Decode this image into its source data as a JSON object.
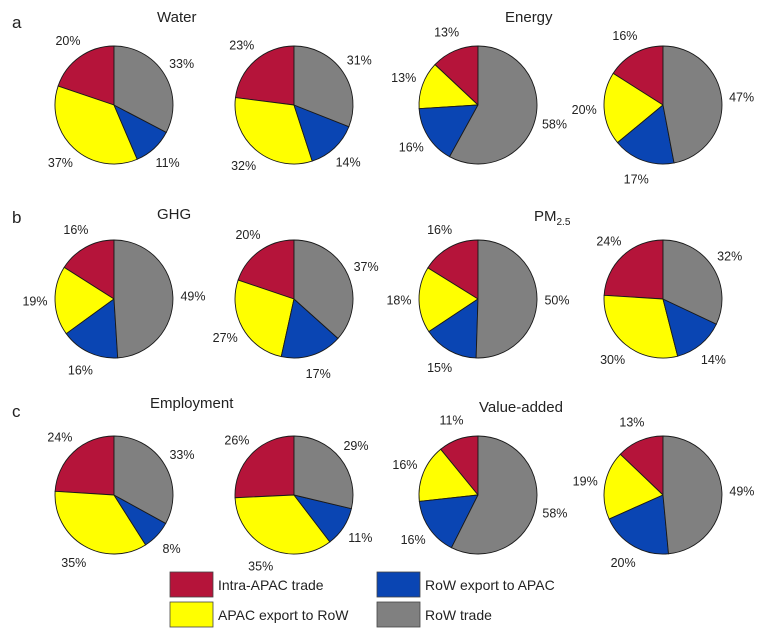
{
  "panels": [
    {
      "letter": "a",
      "titles": [
        "Water",
        "Energy"
      ]
    },
    {
      "letter": "b",
      "titles": [
        "GHG",
        "PM"
      ],
      "pm_sub": "2.5"
    },
    {
      "letter": "c",
      "titles": [
        "Employment",
        "Value-added"
      ]
    }
  ],
  "colors": {
    "intra_apac": "#b5143a",
    "row_export_to_apac": "#0a45b3",
    "apac_export_to_row": "#ffff00",
    "row_trade": "#808080"
  },
  "legend": [
    {
      "label": "Intra-APAC trade",
      "color": "#b5143a"
    },
    {
      "label": "RoW export to APAC",
      "color": "#0a45b3"
    },
    {
      "label": "APAC export to RoW",
      "color": "#ffff00"
    },
    {
      "label": "RoW trade",
      "color": "#808080"
    }
  ],
  "chart_data": [
    {
      "type": "pie",
      "panel": "a",
      "group": "Water",
      "slices": [
        {
          "label": "Intra-APAC trade",
          "value": 20,
          "text": "20%"
        },
        {
          "label": "APAC export to RoW",
          "value": 37,
          "text": "37%"
        },
        {
          "label": "RoW export to APAC",
          "value": 11,
          "text": "11%"
        },
        {
          "label": "RoW trade",
          "value": 33,
          "text": "33%"
        }
      ]
    },
    {
      "type": "pie",
      "panel": "a",
      "group": "Water",
      "slices": [
        {
          "label": "Intra-APAC trade",
          "value": 23,
          "text": "23%"
        },
        {
          "label": "APAC export to RoW",
          "value": 32,
          "text": "32%"
        },
        {
          "label": "RoW export to APAC",
          "value": 14,
          "text": "14%"
        },
        {
          "label": "RoW trade",
          "value": 31,
          "text": "31%"
        }
      ]
    },
    {
      "type": "pie",
      "panel": "a",
      "group": "Energy",
      "slices": [
        {
          "label": "Intra-APAC trade",
          "value": 13,
          "text": "13%"
        },
        {
          "label": "APAC export to RoW",
          "value": 13,
          "text": "13%"
        },
        {
          "label": "RoW export to APAC",
          "value": 16,
          "text": "16%"
        },
        {
          "label": "RoW trade",
          "value": 58,
          "text": "58%"
        }
      ]
    },
    {
      "type": "pie",
      "panel": "a",
      "group": "Energy",
      "slices": [
        {
          "label": "Intra-APAC trade",
          "value": 16,
          "text": "16%"
        },
        {
          "label": "APAC export to RoW",
          "value": 20,
          "text": "20%"
        },
        {
          "label": "RoW export to APAC",
          "value": 17,
          "text": "17%"
        },
        {
          "label": "RoW trade",
          "value": 47,
          "text": "47%"
        }
      ]
    },
    {
      "type": "pie",
      "panel": "b",
      "group": "GHG",
      "slices": [
        {
          "label": "Intra-APAC trade",
          "value": 16,
          "text": "16%"
        },
        {
          "label": "APAC export to RoW",
          "value": 19,
          "text": "19%"
        },
        {
          "label": "RoW export to APAC",
          "value": 16,
          "text": "16%"
        },
        {
          "label": "RoW trade",
          "value": 49,
          "text": "49%"
        }
      ]
    },
    {
      "type": "pie",
      "panel": "b",
      "group": "GHG",
      "slices": [
        {
          "label": "Intra-APAC trade",
          "value": 20,
          "text": "20%"
        },
        {
          "label": "APAC export to RoW",
          "value": 27,
          "text": "27%"
        },
        {
          "label": "RoW export to APAC",
          "value": 17,
          "text": "17%"
        },
        {
          "label": "RoW trade",
          "value": 37,
          "text": "37%"
        }
      ]
    },
    {
      "type": "pie",
      "panel": "b",
      "group": "PM2.5",
      "slices": [
        {
          "label": "Intra-APAC trade",
          "value": 16,
          "text": "16%"
        },
        {
          "label": "APAC export to RoW",
          "value": 18,
          "text": "18%"
        },
        {
          "label": "RoW export to APAC",
          "value": 15,
          "text": "15%"
        },
        {
          "label": "RoW trade",
          "value": 50,
          "text": "50%"
        }
      ]
    },
    {
      "type": "pie",
      "panel": "b",
      "group": "PM2.5",
      "slices": [
        {
          "label": "Intra-APAC trade",
          "value": 24,
          "text": "24%"
        },
        {
          "label": "APAC export to RoW",
          "value": 30,
          "text": "30%"
        },
        {
          "label": "RoW export to APAC",
          "value": 14,
          "text": "14%"
        },
        {
          "label": "RoW trade",
          "value": 32,
          "text": "32%"
        }
      ]
    },
    {
      "type": "pie",
      "panel": "c",
      "group": "Employment",
      "slices": [
        {
          "label": "Intra-APAC trade",
          "value": 24,
          "text": "24%"
        },
        {
          "label": "APAC export to RoW",
          "value": 35,
          "text": "35%"
        },
        {
          "label": "RoW export to APAC",
          "value": 8,
          "text": "8%"
        },
        {
          "label": "RoW trade",
          "value": 33,
          "text": "33%"
        }
      ]
    },
    {
      "type": "pie",
      "panel": "c",
      "group": "Employment",
      "slices": [
        {
          "label": "Intra-APAC trade",
          "value": 26,
          "text": "26%"
        },
        {
          "label": "APAC export to RoW",
          "value": 35,
          "text": "35%"
        },
        {
          "label": "RoW export to APAC",
          "value": 11,
          "text": "11%"
        },
        {
          "label": "RoW trade",
          "value": 29,
          "text": "29%"
        }
      ]
    },
    {
      "type": "pie",
      "panel": "c",
      "group": "Value-added",
      "slices": [
        {
          "label": "Intra-APAC trade",
          "value": 11,
          "text": "11%"
        },
        {
          "label": "APAC export to RoW",
          "value": 16,
          "text": "16%"
        },
        {
          "label": "RoW export to APAC",
          "value": 16,
          "text": "16%"
        },
        {
          "label": "RoW trade",
          "value": 58,
          "text": "58%"
        }
      ]
    },
    {
      "type": "pie",
      "panel": "c",
      "group": "Value-added",
      "slices": [
        {
          "label": "Intra-APAC trade",
          "value": 13,
          "text": "13%"
        },
        {
          "label": "APAC export to RoW",
          "value": 19,
          "text": "19%"
        },
        {
          "label": "RoW export to APAC",
          "value": 20,
          "text": "20%"
        },
        {
          "label": "RoW trade",
          "value": 49,
          "text": "49%"
        }
      ]
    }
  ]
}
